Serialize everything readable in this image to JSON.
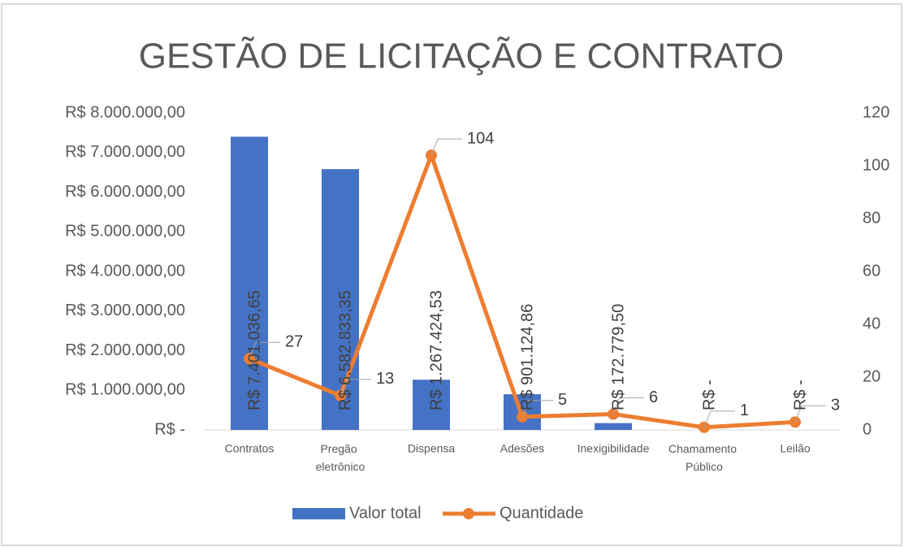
{
  "chart_data": {
    "type": "combo",
    "title": "GESTÃO DE LICITAÇÃO E CONTRATO",
    "categories": [
      "Contratos",
      "Pregão eletrônico",
      "Dispensa",
      "Adesões",
      "Inexigibilidade",
      "Chamamento Público",
      "Leilão"
    ],
    "series": [
      {
        "name": "Valor total",
        "type": "bar",
        "color": "#4472c4",
        "values": [
          7401036.65,
          6582833.35,
          1267424.53,
          901124.86,
          172779.5,
          0,
          0
        ],
        "value_labels": [
          "R$ 7.401.036,65",
          "R$ 6.582.833,35",
          "R$ 1.267.424,53",
          "R$ 901.124,86",
          "R$ 172.779,50",
          "R$ -",
          "R$ -"
        ]
      },
      {
        "name": "Quantidade",
        "type": "line",
        "axis": "y2",
        "color": "#ed7d31",
        "values": [
          27,
          13,
          104,
          5,
          6,
          1,
          3
        ]
      }
    ],
    "ylim": [
      0,
      8000000
    ],
    "yticks": [
      {
        "value": 0,
        "label": "R$ -"
      },
      {
        "value": 1000000,
        "label": "R$ 1.000.000,00"
      },
      {
        "value": 2000000,
        "label": "R$ 2.000.000,00"
      },
      {
        "value": 3000000,
        "label": "R$ 3.000.000,00"
      },
      {
        "value": 4000000,
        "label": "R$ 4.000.000,00"
      },
      {
        "value": 5000000,
        "label": "R$ 5.000.000,00"
      },
      {
        "value": 6000000,
        "label": "R$ 6.000.000,00"
      },
      {
        "value": 7000000,
        "label": "R$ 7.000.000,00"
      },
      {
        "value": 8000000,
        "label": "R$ 8.000.000,00"
      }
    ],
    "y2lim": [
      0,
      120
    ],
    "y2ticks": [
      0,
      20,
      40,
      60,
      80,
      100,
      120
    ],
    "legend": "bottom"
  }
}
